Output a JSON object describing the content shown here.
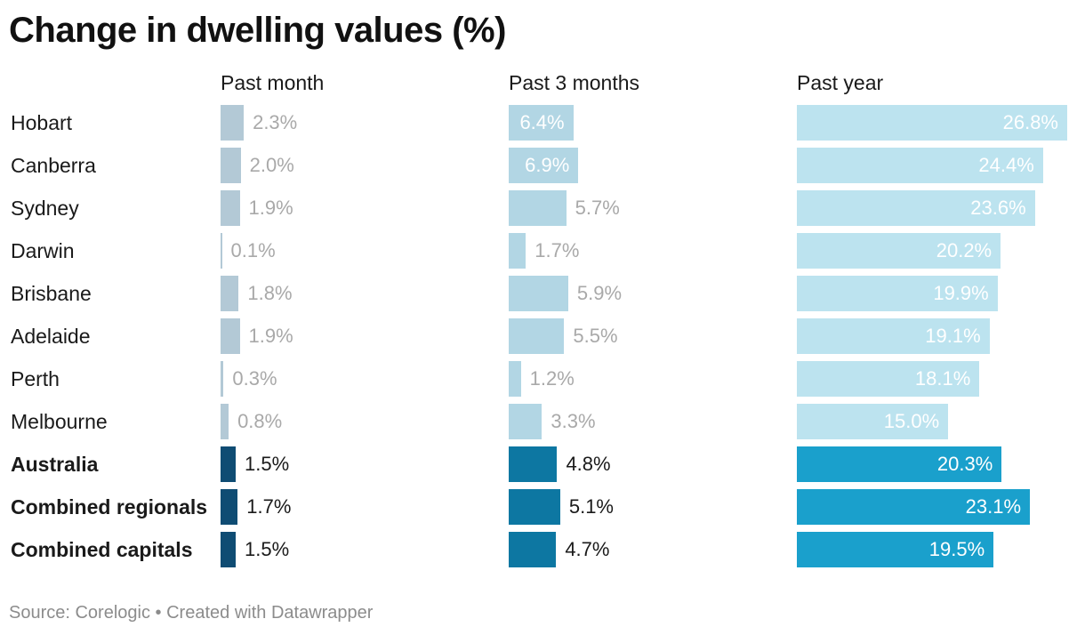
{
  "title": "Change in dwelling values (%)",
  "footer": {
    "source": "Source: Corelogic",
    "separator": "•",
    "created_with": "Created with Datawrapper"
  },
  "colors": {
    "highlight_label": "#1a1a1a",
    "muted_label": "#a9a9a9",
    "inside_label": "#ffffff",
    "month_muted": "#b3c9d6",
    "month_highlight": "#0f4c73",
    "three_month_muted": "#b2d6e4",
    "three_month_highlight": "#0d77a2",
    "year_muted": "#bce3ef",
    "year_highlight": "#1aa0cc"
  },
  "chart_data": {
    "type": "bar",
    "title": "Change in dwelling values (%)",
    "categories": [
      "Hobart",
      "Canberra",
      "Sydney",
      "Darwin",
      "Brisbane",
      "Adelaide",
      "Perth",
      "Melbourne",
      "Australia",
      "Combined regionals",
      "Combined capitals"
    ],
    "highlighted": [
      "Australia",
      "Combined regionals",
      "Combined capitals"
    ],
    "unit": "%",
    "series": [
      {
        "name": "Past month",
        "values": [
          2.3,
          2.0,
          1.9,
          0.1,
          1.8,
          1.9,
          0.3,
          0.8,
          1.5,
          1.7,
          1.5
        ],
        "labels": [
          "2.3%",
          "2.0%",
          "1.9%",
          "0.1%",
          "1.8%",
          "1.9%",
          "0.3%",
          "0.8%",
          "1.5%",
          "1.7%",
          "1.5%"
        ]
      },
      {
        "name": "Past 3 months",
        "values": [
          6.4,
          6.9,
          5.7,
          1.7,
          5.9,
          5.5,
          1.2,
          3.3,
          4.8,
          5.1,
          4.7
        ],
        "labels": [
          "6.4%",
          "6.9%",
          "5.7%",
          "1.7%",
          "5.9%",
          "5.5%",
          "1.2%",
          "3.3%",
          "4.8%",
          "5.1%",
          "4.7%"
        ]
      },
      {
        "name": "Past year",
        "values": [
          26.8,
          24.4,
          23.6,
          20.2,
          19.9,
          19.1,
          18.1,
          15.0,
          20.3,
          23.1,
          19.5
        ],
        "labels": [
          "26.8%",
          "24.4%",
          "23.6%",
          "20.2%",
          "19.9%",
          "19.1%",
          "18.1%",
          "15.0%",
          "20.3%",
          "23.1%",
          "19.5%"
        ]
      }
    ],
    "xlim": [
      0,
      26.8
    ],
    "grid": false,
    "legend": "none"
  }
}
